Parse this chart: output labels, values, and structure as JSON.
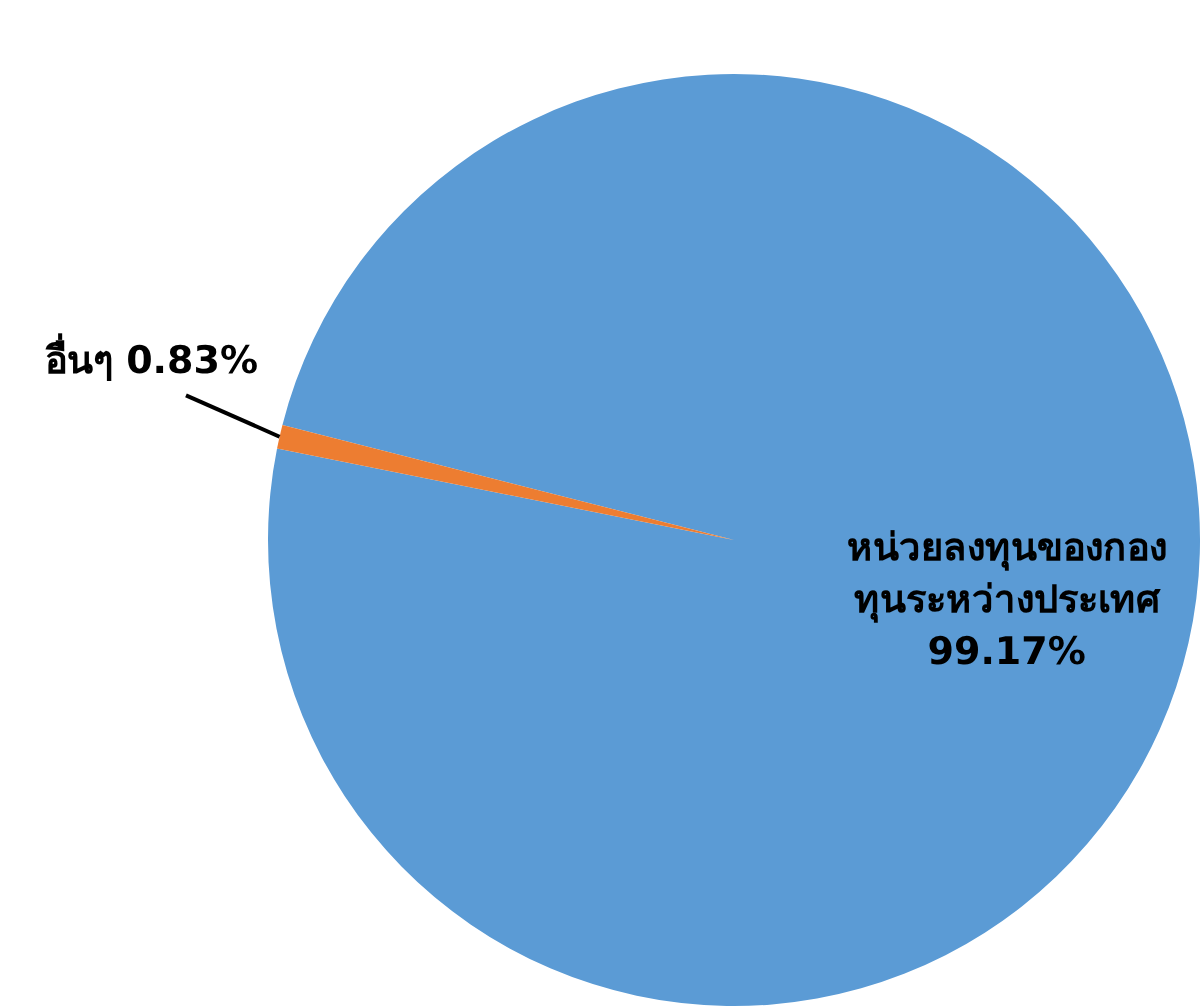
{
  "chart_data": {
    "type": "pie",
    "categories": [
      "หน่วยลงทุนของกองทุนระหว่างประเทศ",
      "อื่นๆ"
    ],
    "values": [
      99.17,
      0.83
    ],
    "value_labels": [
      "99.17%",
      "0.83%"
    ],
    "colors": [
      "#5b9bd5",
      "#ed7d31"
    ],
    "legend": false
  }
}
